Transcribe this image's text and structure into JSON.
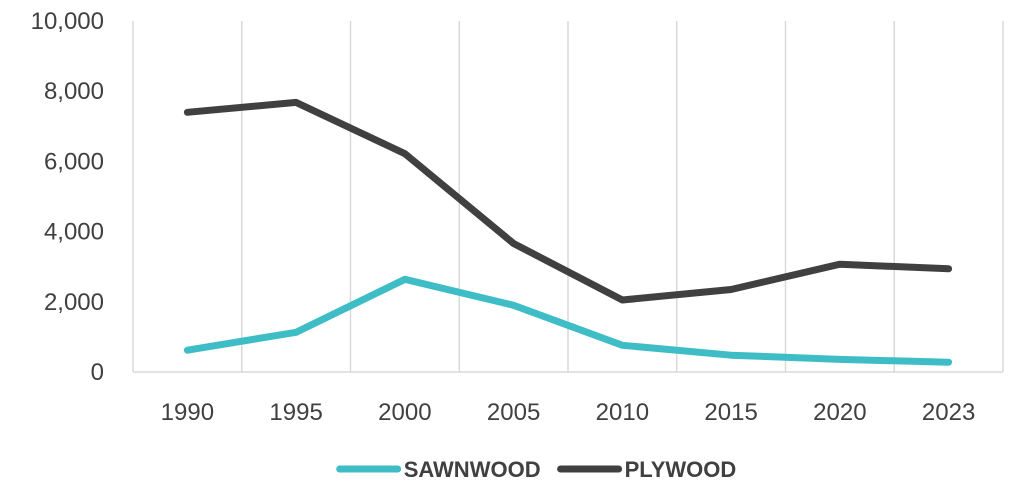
{
  "chart_data": {
    "type": "line",
    "title": "",
    "xlabel": "",
    "ylabel": "",
    "categories": [
      "1990",
      "1995",
      "2000",
      "2005",
      "2010",
      "2015",
      "2020",
      "2023"
    ],
    "ylim": [
      0,
      10000
    ],
    "yticks": [
      0,
      2000,
      4000,
      6000,
      8000,
      10000
    ],
    "ytick_labels": [
      "0",
      "2,000",
      "4,000",
      "6,000",
      "8,000",
      "10,000"
    ],
    "grid": "vertical",
    "legend_position": "bottom",
    "series": [
      {
        "name": "SAWNWOOD",
        "color": "#3ebdc6",
        "values": [
          620,
          1130,
          2640,
          1900,
          760,
          480,
          360,
          280
        ]
      },
      {
        "name": "PLYWOOD",
        "color": "#404040",
        "values": [
          7400,
          7680,
          6220,
          3660,
          2050,
          2350,
          3070,
          2940
        ]
      }
    ]
  }
}
